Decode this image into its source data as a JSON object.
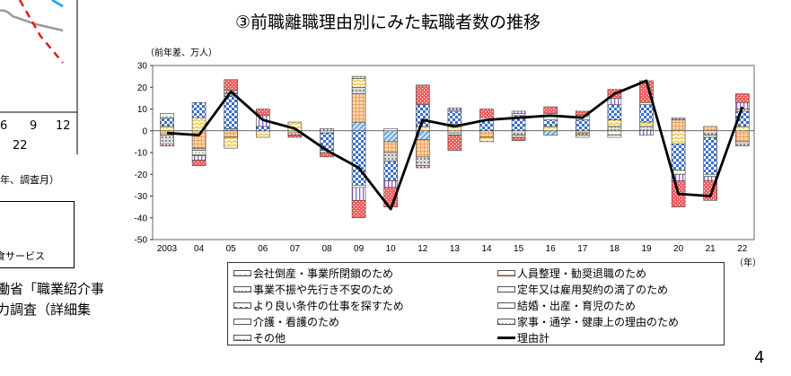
{
  "left_panel": {
    "ticks": [
      "6",
      "9",
      "12"
    ],
    "year": "22",
    "axis_note": "年、調査月）",
    "legend_fragment": "食サービス",
    "source_line1": "働省「職業紹介事",
    "source_line2": "力調査（詳細集"
  },
  "page_number": "4",
  "chart_data": {
    "type": "bar",
    "stacked": true,
    "title": "③前職離職理由別にみた転職者数の推移",
    "ylabel": "（前年差、万人）",
    "xlabel": "（年）",
    "ylim": [
      -50,
      30
    ],
    "yticks": [
      30,
      20,
      10,
      0,
      -10,
      -20,
      -30,
      -40,
      -50
    ],
    "categories": [
      "2003",
      "04",
      "05",
      "06",
      "07",
      "08",
      "09",
      "10",
      "12",
      "13",
      "14",
      "15",
      "16",
      "17",
      "18",
      "19",
      "20",
      "21",
      "22"
    ],
    "series": [
      {
        "name": "会社倒産・事業所閉鎖のため",
        "pattern": "diag",
        "color": "#7fb3e6",
        "values": [
          0,
          0,
          1,
          0,
          0,
          0,
          4,
          -5,
          -4,
          0,
          0,
          0,
          -2,
          0,
          0,
          0,
          0,
          0,
          0
        ]
      },
      {
        "name": "人員整理・勧奨退職のため",
        "pattern": "grid",
        "color": "#f4a460",
        "values": [
          -2,
          -8,
          -3,
          0,
          -1,
          0,
          13,
          -5,
          -8,
          0,
          -3,
          0,
          0,
          -1,
          0,
          0,
          5,
          2,
          -5
        ]
      },
      {
        "name": "事業不振や先行き不安のため",
        "pattern": "gray",
        "color": "#a9a9a9",
        "values": [
          -4,
          -1,
          0,
          0,
          0,
          -1,
          3,
          -4,
          -4,
          -1,
          0,
          -2,
          0,
          -1,
          2,
          2,
          1,
          -2,
          -2
        ]
      },
      {
        "name": "定年又は雇用契約の満了のため",
        "pattern": "wave",
        "color": "#f5d76e",
        "values": [
          2,
          6,
          -5,
          -3,
          4,
          0,
          4,
          0,
          2,
          3,
          -2,
          -1,
          2,
          -1,
          3,
          2,
          -6,
          -1,
          2
        ]
      },
      {
        "name": "より良い条件の仕事を探すため",
        "pattern": "check",
        "color": "#3a6fc4",
        "values": [
          4,
          7,
          15,
          2,
          0,
          -8,
          -25,
          -9,
          10,
          6,
          5,
          7,
          3,
          5,
          7,
          8,
          -12,
          -17,
          7
        ]
      },
      {
        "name": "結婚・出産・育児のため",
        "pattern": "dots",
        "color": "#9acd6a",
        "values": [
          2,
          -2,
          1,
          0,
          0,
          -1,
          1,
          0,
          0,
          -1,
          0,
          1,
          2,
          2,
          -2,
          1,
          -2,
          -1,
          0
        ]
      },
      {
        "name": "介護・看護のため",
        "pattern": "dashred",
        "color": "#b22222",
        "values": [
          -1,
          -0.5,
          0.5,
          0,
          -1,
          0,
          -1,
          1,
          -1,
          0.5,
          1,
          0,
          1,
          0,
          -1,
          0,
          0,
          0,
          1
        ]
      },
      {
        "name": "家事・通学・健康上の理由のため",
        "pattern": "vert",
        "color": "#9370db",
        "values": [
          0,
          -2,
          1,
          5,
          0,
          1,
          -6,
          -3,
          0,
          1,
          0,
          1,
          0,
          0,
          3,
          -2,
          -3,
          -2,
          3
        ]
      },
      {
        "name": "その他",
        "pattern": "redcheck",
        "color": "#f06060",
        "values": [
          0,
          -2.5,
          5,
          3,
          -1,
          -2,
          -8,
          -9,
          9,
          -7,
          4,
          -1.5,
          3,
          2,
          4,
          10,
          -12,
          -9,
          4
        ]
      }
    ],
    "total": {
      "name": "理由計",
      "color": "#000000",
      "values": [
        -1,
        -2,
        18,
        5,
        1,
        -9,
        -17,
        -36,
        5,
        2,
        5,
        6,
        7,
        6,
        17,
        23,
        -29,
        -30,
        11
      ]
    },
    "grid": false,
    "legend_position": "bottom"
  }
}
